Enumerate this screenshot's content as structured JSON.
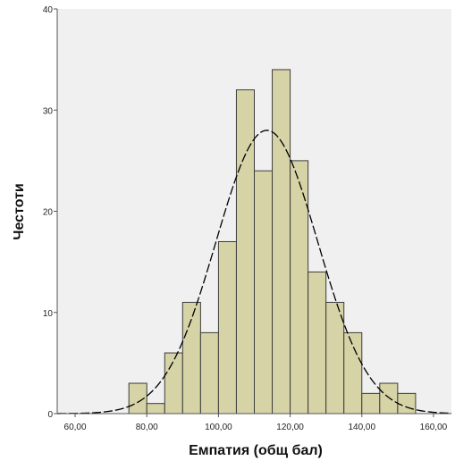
{
  "chart_data": {
    "type": "histogram",
    "title": "",
    "xlabel": "Емпатия (общ бал)",
    "ylabel": "Честоти",
    "xlim": [
      55,
      165
    ],
    "ylim": [
      0,
      40
    ],
    "x_ticks": [
      {
        "value": 60,
        "label": "60,00"
      },
      {
        "value": 80,
        "label": "80,00"
      },
      {
        "value": 100,
        "label": "100,00"
      },
      {
        "value": 120,
        "label": "120,00"
      },
      {
        "value": 140,
        "label": "140,00"
      },
      {
        "value": 160,
        "label": "160,00"
      }
    ],
    "y_ticks": [
      {
        "value": 0,
        "label": "0"
      },
      {
        "value": 10,
        "label": "10"
      },
      {
        "value": 20,
        "label": "20"
      },
      {
        "value": 30,
        "label": "30"
      },
      {
        "value": 40,
        "label": "40"
      }
    ],
    "bin_width": 5,
    "bins": [
      {
        "start": 75,
        "end": 80,
        "count": 3
      },
      {
        "start": 80,
        "end": 85,
        "count": 1
      },
      {
        "start": 85,
        "end": 90,
        "count": 6
      },
      {
        "start": 90,
        "end": 95,
        "count": 11
      },
      {
        "start": 95,
        "end": 100,
        "count": 8
      },
      {
        "start": 100,
        "end": 105,
        "count": 17
      },
      {
        "start": 105,
        "end": 110,
        "count": 32
      },
      {
        "start": 110,
        "end": 115,
        "count": 24
      },
      {
        "start": 115,
        "end": 120,
        "count": 34
      },
      {
        "start": 120,
        "end": 125,
        "count": 25
      },
      {
        "start": 125,
        "end": 130,
        "count": 14
      },
      {
        "start": 130,
        "end": 135,
        "count": 11
      },
      {
        "start": 135,
        "end": 140,
        "count": 8
      },
      {
        "start": 140,
        "end": 145,
        "count": 2
      },
      {
        "start": 145,
        "end": 150,
        "count": 3
      },
      {
        "start": 150,
        "end": 155,
        "count": 2
      }
    ],
    "normal_curve": {
      "mean": 113.5,
      "sd": 14.2,
      "peak": 28
    },
    "grid": false,
    "colors": {
      "plot_background": "#f0f0f0",
      "bar_fill": "#d6d3a6",
      "bar_stroke": "#3c3c3c",
      "curve": "#000000"
    }
  }
}
